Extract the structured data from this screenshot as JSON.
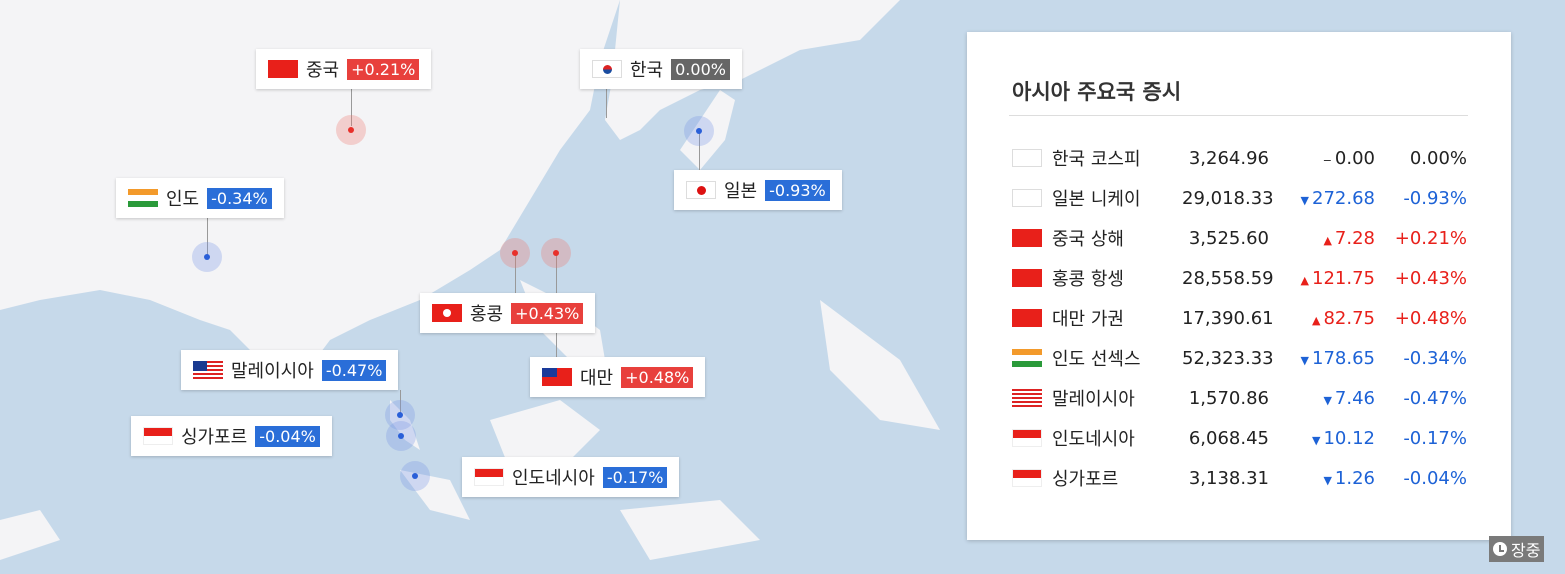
{
  "map_labels": [
    {
      "country": "중국",
      "pct": "+0.21%",
      "dir": "up",
      "flag": "cn"
    },
    {
      "country": "한국",
      "pct": "0.00%",
      "dir": "flat",
      "flag": "kr"
    },
    {
      "country": "인도",
      "pct": "-0.34%",
      "dir": "down",
      "flag": "in"
    },
    {
      "country": "일본",
      "pct": "-0.93%",
      "dir": "down",
      "flag": "jp"
    },
    {
      "country": "홍콩",
      "pct": "+0.43%",
      "dir": "up",
      "flag": "hk"
    },
    {
      "country": "말레이시아",
      "pct": "-0.47%",
      "dir": "down",
      "flag": "my"
    },
    {
      "country": "대만",
      "pct": "+0.48%",
      "dir": "up",
      "flag": "tw"
    },
    {
      "country": "싱가포르",
      "pct": "-0.04%",
      "dir": "down",
      "flag": "sg"
    },
    {
      "country": "인도네시아",
      "pct": "-0.17%",
      "dir": "down",
      "flag": "id"
    }
  ],
  "panel": {
    "title": "아시아 주요국 증시",
    "rows": [
      {
        "name": "한국 코스피",
        "value": "3,264.96",
        "change": "0.00",
        "rate": "0.00%",
        "dir": "flat",
        "flag": "kr"
      },
      {
        "name": "일본 니케이",
        "value": "29,018.33",
        "change": "272.68",
        "rate": "-0.93%",
        "dir": "down",
        "flag": "jp"
      },
      {
        "name": "중국 상해",
        "value": "3,525.60",
        "change": "7.28",
        "rate": "+0.21%",
        "dir": "up",
        "flag": "cn"
      },
      {
        "name": "홍콩 항셍",
        "value": "28,558.59",
        "change": "121.75",
        "rate": "+0.43%",
        "dir": "up",
        "flag": "hk"
      },
      {
        "name": "대만 가권",
        "value": "17,390.61",
        "change": "82.75",
        "rate": "+0.48%",
        "dir": "up",
        "flag": "tw"
      },
      {
        "name": "인도 선섹스",
        "value": "52,323.33",
        "change": "178.65",
        "rate": "-0.34%",
        "dir": "down",
        "flag": "in"
      },
      {
        "name": "말레이시아",
        "value": "1,570.86",
        "change": "7.46",
        "rate": "-0.47%",
        "dir": "down",
        "flag": "my"
      },
      {
        "name": "인도네시아",
        "value": "6,068.45",
        "change": "10.12",
        "rate": "-0.17%",
        "dir": "down",
        "flag": "id"
      },
      {
        "name": "싱가포르",
        "value": "3,138.31",
        "change": "1.26",
        "rate": "-0.04%",
        "dir": "down",
        "flag": "sg"
      }
    ]
  },
  "status": {
    "label": "장중",
    "icon": "clock-icon"
  },
  "colors": {
    "up": "#e8403c",
    "down": "#2a6ed8",
    "flat": "#666666",
    "sea": "#c6d9ea",
    "land": "#f4f4f6"
  }
}
